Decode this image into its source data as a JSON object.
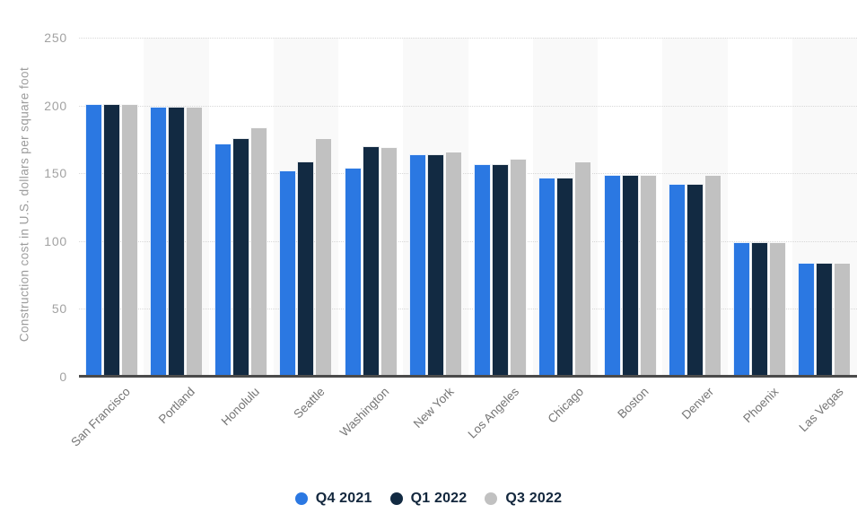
{
  "chart_data": {
    "type": "bar",
    "title": "",
    "xlabel": "",
    "ylabel": "Construction cost in U.S. dollars per square foot",
    "ylim": [
      0,
      250
    ],
    "yticks": [
      0,
      50,
      100,
      150,
      200,
      250
    ],
    "grid": "horizontal-dotted",
    "legend_position": "bottom-center",
    "plot_band_color": "#f9f9f9",
    "axis_line_color": "#4a4a4a",
    "categories": [
      "San Francisco",
      "Portland",
      "Honolulu",
      "Seattle",
      "Washington",
      "New York",
      "Los Angeles",
      "Chicago",
      "Boston",
      "Denver",
      "Phoenix",
      "Las Vegas"
    ],
    "series": [
      {
        "name": "Q4 2021",
        "color": "#2b78e2",
        "values": [
          201,
          199,
          172,
          152,
          154,
          164,
          157,
          147,
          149,
          142,
          99,
          84
        ]
      },
      {
        "name": "Q1 2022",
        "color": "#122a42",
        "values": [
          201,
          199,
          176,
          159,
          170,
          164,
          157,
          147,
          149,
          142,
          99,
          84
        ]
      },
      {
        "name": "Q3 2022",
        "color": "#c1c1c1",
        "values": [
          201,
          199,
          184,
          176,
          169,
          166,
          161,
          159,
          149,
          149,
          99,
          84
        ]
      }
    ]
  }
}
